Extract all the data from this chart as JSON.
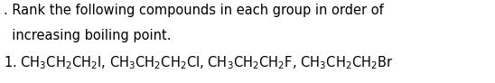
{
  "line1": ". Rank the following compounds in each group in order of",
  "line2": "  increasing boiling point.",
  "background_color": "#ffffff",
  "text_color": "#000000",
  "font_size": 10.5,
  "fig_width": 5.48,
  "fig_height": 0.92,
  "dpi": 100,
  "line3_math": "1. $\\mathregular{CH_3CH_2CH_2I}$, $\\mathregular{CH_3CH_2CH_2Cl}$, $\\mathregular{CH_3CH_2CH_2F}$, $\\mathregular{CH_3CH_2CH_2Br}$"
}
